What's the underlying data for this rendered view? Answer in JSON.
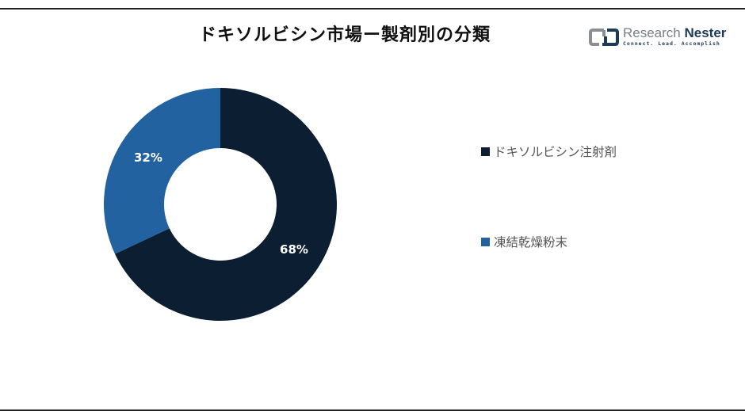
{
  "title": "ドキソルビシン市場ー製剤別の分類",
  "logo": {
    "name_part1": "Research",
    "name_part2": "Nester",
    "tagline": "Connect. Lead. Accomplish"
  },
  "colors": {
    "series_dark": "#0c1e31",
    "series_blue": "#2262a0"
  },
  "chart_data": {
    "type": "pie",
    "subtype": "donut",
    "title": "ドキソルビシン市場ー製剤別の分類",
    "categories": [
      "ドキソルビシン注射剤",
      "凍結乾燥粉末"
    ],
    "values": [
      68,
      32
    ],
    "labels": [
      "68%",
      "32%"
    ],
    "colors": [
      "#0c1e31",
      "#2262a0"
    ],
    "legend_position": "right",
    "start_angle": "12 o'clock, clockwise"
  },
  "legend": {
    "items": [
      {
        "label": "ドキソルビシン注射剤"
      },
      {
        "label": "凍結乾燥粉末"
      }
    ]
  }
}
